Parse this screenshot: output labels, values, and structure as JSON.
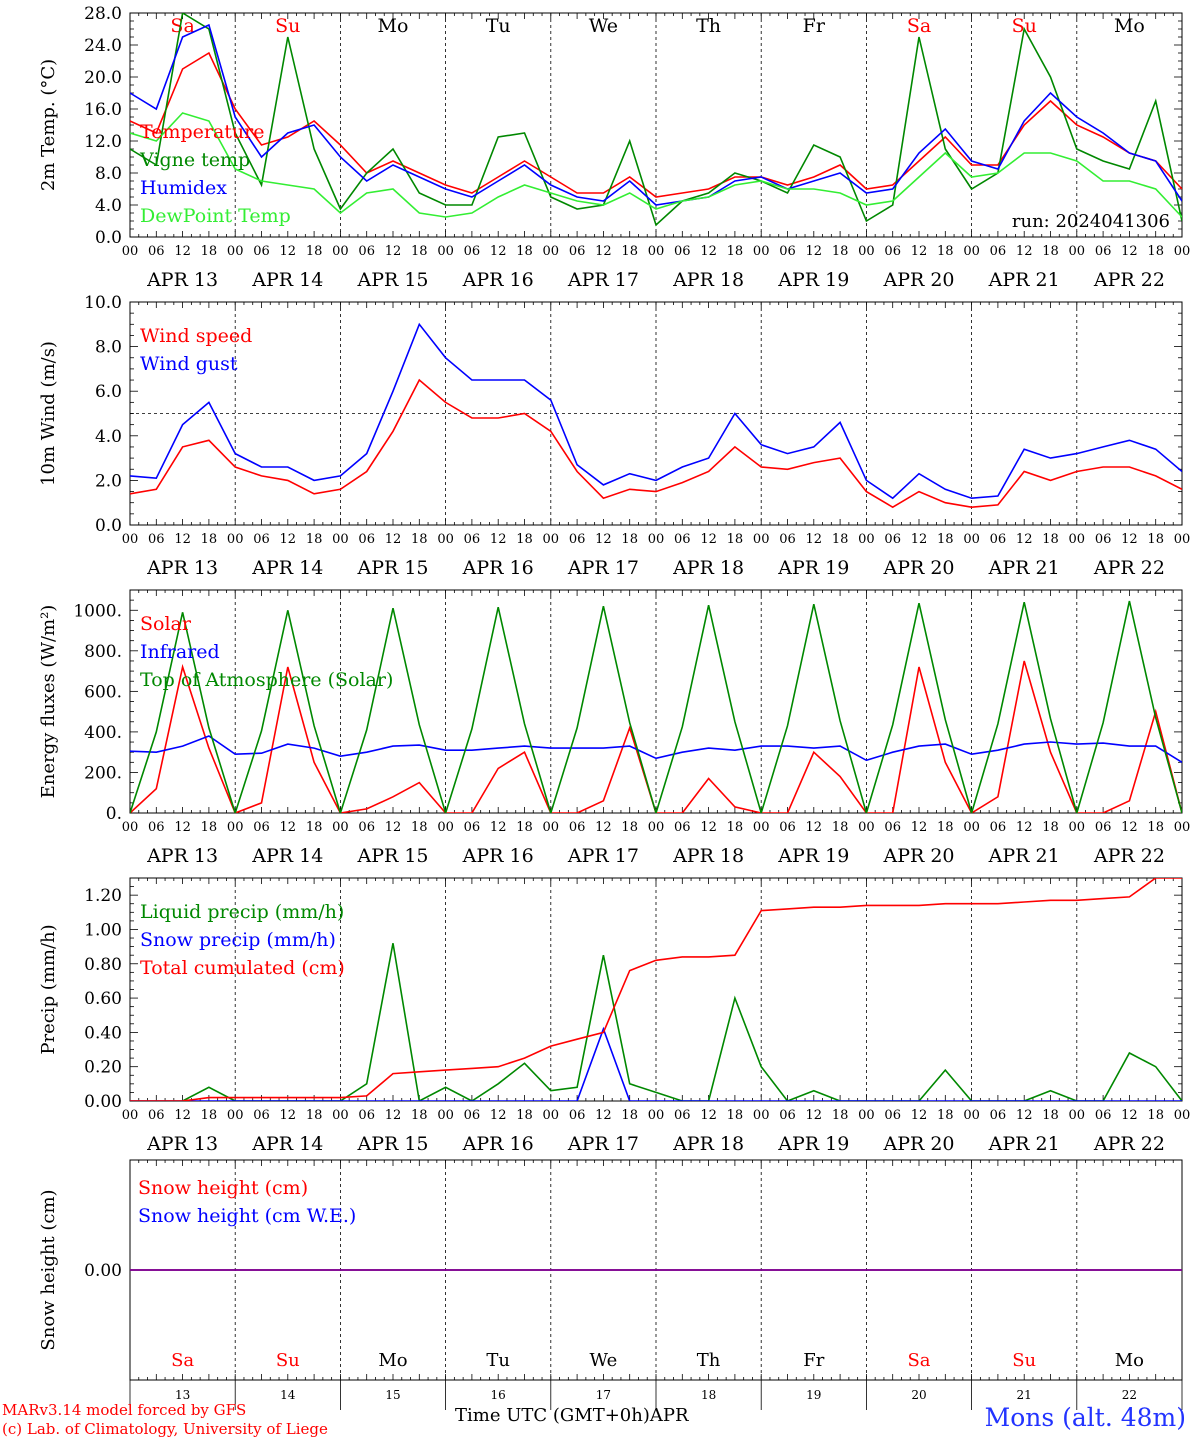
{
  "chart_data": [
    {
      "type": "line",
      "ylabel": "2m Temp. (°C)",
      "ylim": [
        0,
        28
      ],
      "yticks": [
        "0.0",
        "4.0",
        "8.0",
        "12.0",
        "16.0",
        "20.0",
        "24.0",
        "28.0"
      ],
      "ytick_values": [
        0,
        4,
        8,
        12,
        16,
        20,
        24,
        28
      ],
      "x_hours": [
        0,
        6,
        12,
        18,
        24,
        30,
        36,
        42,
        48,
        54,
        60,
        66,
        72,
        78,
        84,
        90,
        96,
        102,
        108,
        114,
        120,
        126,
        132,
        138,
        144,
        150,
        156,
        162,
        168,
        174,
        180,
        186,
        192,
        198,
        204,
        210,
        216,
        222,
        228,
        234,
        240
      ],
      "annotation": "run: 2024041306",
      "day_names": [
        "Sa",
        "Su",
        "Mo",
        "Tu",
        "We",
        "Th",
        "Fr",
        "Sa",
        "Su",
        "Mo"
      ],
      "series": [
        {
          "name": "Temperature",
          "color": "#ff0000",
          "values": [
            14.5,
            13.0,
            21.0,
            23.0,
            16.0,
            11.5,
            12.5,
            14.5,
            11.5,
            8.0,
            9.5,
            8.0,
            6.5,
            5.5,
            7.5,
            9.5,
            7.5,
            5.5,
            5.5,
            7.5,
            5.0,
            5.5,
            6.0,
            7.5,
            7.5,
            6.5,
            7.5,
            9.0,
            6.0,
            6.5,
            9.5,
            12.5,
            9.0,
            9.0,
            14.0,
            17.0,
            14.0,
            12.5,
            10.5,
            9.5,
            6.0
          ]
        },
        {
          "name": "Vigne temp",
          "color": "#008800",
          "values": [
            11.0,
            9.0,
            28.0,
            26.0,
            13.0,
            6.5,
            25.0,
            11.0,
            3.5,
            8.0,
            11.0,
            5.5,
            4.0,
            4.0,
            12.5,
            13.0,
            5.0,
            3.5,
            4.0,
            12.0,
            1.5,
            4.5,
            5.5,
            8.0,
            7.0,
            5.5,
            11.5,
            10.0,
            2.0,
            4.0,
            25.0,
            11.0,
            6.0,
            8.0,
            26.0,
            20.0,
            11.0,
            9.5,
            8.5,
            17.0,
            2.0
          ]
        },
        {
          "name": "Humidex",
          "color": "#0000ff",
          "values": [
            18.0,
            16.0,
            25.0,
            26.5,
            15.0,
            10.0,
            13.0,
            14.0,
            10.0,
            7.0,
            9.0,
            7.5,
            6.0,
            5.0,
            7.0,
            9.0,
            6.5,
            5.0,
            4.5,
            7.0,
            4.0,
            4.5,
            5.0,
            7.0,
            7.5,
            6.0,
            7.0,
            8.0,
            5.5,
            6.0,
            10.5,
            13.5,
            9.5,
            8.5,
            14.5,
            18.0,
            15.0,
            13.0,
            10.5,
            9.5,
            4.5
          ]
        },
        {
          "name": "DewPoint Temp",
          "color": "#33ee33",
          "values": [
            13.0,
            12.0,
            15.5,
            14.5,
            8.5,
            7.0,
            6.5,
            6.0,
            3.0,
            5.5,
            6.0,
            3.0,
            2.5,
            3.0,
            5.0,
            6.5,
            5.5,
            4.5,
            4.0,
            5.5,
            3.5,
            4.5,
            5.0,
            6.5,
            7.0,
            6.0,
            6.0,
            5.5,
            4.0,
            4.5,
            7.5,
            10.5,
            7.5,
            8.0,
            10.5,
            10.5,
            9.5,
            7.0,
            7.0,
            6.0,
            2.5
          ]
        }
      ]
    },
    {
      "type": "line",
      "ylabel": "10m Wind (m/s)",
      "ylim": [
        0,
        10
      ],
      "yticks": [
        "0.0",
        "2.0",
        "4.0",
        "6.0",
        "8.0",
        "10.0"
      ],
      "ytick_values": [
        0,
        2,
        4,
        6,
        8,
        10
      ],
      "reference_line": 5.0,
      "x_hours": [
        0,
        6,
        12,
        18,
        24,
        30,
        36,
        42,
        48,
        54,
        60,
        66,
        72,
        78,
        84,
        90,
        96,
        102,
        108,
        114,
        120,
        126,
        132,
        138,
        144,
        150,
        156,
        162,
        168,
        174,
        180,
        186,
        192,
        198,
        204,
        210,
        216,
        222,
        228,
        234,
        240
      ],
      "series": [
        {
          "name": "Wind speed",
          "color": "#ff0000",
          "values": [
            1.4,
            1.6,
            3.5,
            3.8,
            2.6,
            2.2,
            2.0,
            1.4,
            1.6,
            2.4,
            4.2,
            6.5,
            5.5,
            4.8,
            4.8,
            5.0,
            4.2,
            2.4,
            1.2,
            1.6,
            1.5,
            1.9,
            2.4,
            3.5,
            2.6,
            2.5,
            2.8,
            3.0,
            1.5,
            0.8,
            1.5,
            1.0,
            0.8,
            0.9,
            2.4,
            2.0,
            2.4,
            2.6,
            2.6,
            2.2,
            1.6
          ]
        },
        {
          "name": "Wind gust",
          "color": "#0000ff",
          "values": [
            2.2,
            2.1,
            4.5,
            5.5,
            3.2,
            2.6,
            2.6,
            2.0,
            2.2,
            3.2,
            6.0,
            9.0,
            7.5,
            6.5,
            6.5,
            6.5,
            5.6,
            2.7,
            1.8,
            2.3,
            2.0,
            2.6,
            3.0,
            5.0,
            3.6,
            3.2,
            3.5,
            4.6,
            2.0,
            1.2,
            2.3,
            1.6,
            1.2,
            1.3,
            3.4,
            3.0,
            3.2,
            3.5,
            3.8,
            3.4,
            2.4
          ]
        }
      ]
    },
    {
      "type": "line",
      "ylabel": "Energy fluxes (W/m²)",
      "ylim": [
        0,
        1100
      ],
      "yticks": [
        "0.",
        "200.",
        "400.",
        "600.",
        "800.",
        "1000."
      ],
      "ytick_values": [
        0,
        200,
        400,
        600,
        800,
        1000
      ],
      "x_hours": [
        0,
        6,
        12,
        18,
        24,
        30,
        36,
        42,
        48,
        54,
        60,
        66,
        72,
        78,
        84,
        90,
        96,
        102,
        108,
        114,
        120,
        126,
        132,
        138,
        144,
        150,
        156,
        162,
        168,
        174,
        180,
        186,
        192,
        198,
        204,
        210,
        216,
        222,
        228,
        234,
        240
      ],
      "series": [
        {
          "name": "Solar",
          "color": "#ff0000",
          "values": [
            0,
            120,
            720,
            320,
            0,
            50,
            720,
            250,
            0,
            20,
            80,
            150,
            0,
            0,
            220,
            300,
            0,
            0,
            60,
            420,
            0,
            0,
            170,
            30,
            0,
            0,
            300,
            180,
            0,
            0,
            720,
            250,
            0,
            80,
            750,
            300,
            0,
            0,
            60,
            500,
            0
          ]
        },
        {
          "name": "Infrared",
          "color": "#0000ff",
          "values": [
            305,
            300,
            330,
            380,
            290,
            295,
            340,
            320,
            280,
            300,
            330,
            335,
            310,
            310,
            320,
            330,
            320,
            320,
            320,
            330,
            270,
            300,
            320,
            310,
            330,
            330,
            320,
            330,
            260,
            300,
            330,
            340,
            290,
            310,
            340,
            350,
            340,
            345,
            330,
            330,
            250
          ]
        },
        {
          "name": "Top of Atmosphere (Solar)",
          "color": "#008800",
          "values": [
            0,
            400,
            990,
            420,
            0,
            405,
            1000,
            430,
            0,
            410,
            1010,
            435,
            0,
            415,
            1015,
            440,
            0,
            420,
            1020,
            445,
            0,
            425,
            1025,
            450,
            0,
            430,
            1030,
            455,
            0,
            435,
            1035,
            460,
            0,
            440,
            1040,
            465,
            0,
            445,
            1045,
            470,
            0
          ]
        }
      ]
    },
    {
      "type": "line",
      "ylabel": "Precip (mm/h)",
      "ylim": [
        0,
        1.3
      ],
      "yticks": [
        "0.00",
        "0.20",
        "0.40",
        "0.60",
        "0.80",
        "1.00",
        "1.20"
      ],
      "ytick_values": [
        0,
        0.2,
        0.4,
        0.6,
        0.8,
        1.0,
        1.2
      ],
      "x_hours": [
        0,
        6,
        12,
        18,
        24,
        30,
        36,
        42,
        48,
        54,
        60,
        66,
        72,
        78,
        84,
        90,
        96,
        102,
        108,
        114,
        120,
        126,
        132,
        138,
        144,
        150,
        156,
        162,
        168,
        174,
        180,
        186,
        192,
        198,
        204,
        210,
        216,
        222,
        228,
        234,
        240
      ],
      "series": [
        {
          "name": "Liquid precip (mm/h)",
          "color": "#008800",
          "values": [
            0,
            0,
            0,
            0.08,
            0,
            0,
            0,
            0,
            0,
            0.1,
            0.92,
            0,
            0.08,
            0,
            0.1,
            0.22,
            0.06,
            0.08,
            0.85,
            0.1,
            0.05,
            0,
            0,
            0.6,
            0.2,
            0,
            0.06,
            0,
            0,
            0,
            0,
            0.18,
            0,
            0,
            0,
            0.06,
            0,
            0,
            0.28,
            0.2,
            0
          ]
        },
        {
          "name": "Snow precip (mm/h)",
          "color": "#0000ff",
          "values": [
            0,
            0,
            0,
            0,
            0,
            0,
            0,
            0,
            0,
            0,
            0,
            0,
            0,
            0,
            0,
            0,
            0,
            0,
            0.42,
            0,
            0,
            0,
            0,
            0,
            0,
            0,
            0,
            0,
            0,
            0,
            0,
            0,
            0,
            0,
            0,
            0,
            0,
            0,
            0,
            0,
            0
          ]
        },
        {
          "name": "Total cumulated (cm)",
          "color": "#ff0000",
          "values": [
            0,
            0,
            0,
            0.02,
            0.02,
            0.02,
            0.02,
            0.02,
            0.02,
            0.03,
            0.16,
            0.17,
            0.18,
            0.19,
            0.2,
            0.25,
            0.32,
            0.36,
            0.4,
            0.76,
            0.82,
            0.84,
            0.84,
            0.85,
            1.11,
            1.12,
            1.13,
            1.13,
            1.14,
            1.14,
            1.14,
            1.15,
            1.15,
            1.15,
            1.16,
            1.17,
            1.17,
            1.18,
            1.19,
            1.3,
            1.3
          ]
        }
      ]
    },
    {
      "type": "line",
      "ylabel": "Snow height (cm)",
      "ylim": [
        -1,
        1
      ],
      "yticks": [
        "0.00"
      ],
      "ytick_values": [
        0
      ],
      "x_hours": [
        0,
        240
      ],
      "series": [
        {
          "name": "Snow height (cm)",
          "color": "#ff0000",
          "values": [
            0,
            0
          ]
        },
        {
          "name": "Snow height (cm W.E.)",
          "color": "#0000ff",
          "values": [
            0,
            0
          ]
        }
      ],
      "day_names": [
        "Sa",
        "Su",
        "Mo",
        "Tu",
        "We",
        "Th",
        "Fr",
        "Sa",
        "Su",
        "Mo"
      ],
      "day_numbers": [
        "13",
        "14",
        "15",
        "16",
        "17",
        "18",
        "19",
        "20",
        "21",
        "22"
      ]
    }
  ],
  "x_axis": {
    "hour_labels": [
      "00",
      "06",
      "12",
      "18"
    ],
    "end_label": "00",
    "date_labels": [
      "APR 13",
      "APR 14",
      "APR 15",
      "APR 16",
      "APR 17",
      "APR 18",
      "APR 19",
      "APR 20",
      "APR 21",
      "APR 22"
    ],
    "weekend_color": "#ff0000",
    "weekend_days": [
      "Sa",
      "Su"
    ]
  },
  "footer": {
    "model_line": "MARv3.14 model forced by GFS",
    "credit_line": "(c) Lab. of Climatology, University of Liege",
    "axis_title": "Time UTC (GMT+0h)",
    "month": "APR",
    "station": "Mons (alt. 48m)"
  }
}
